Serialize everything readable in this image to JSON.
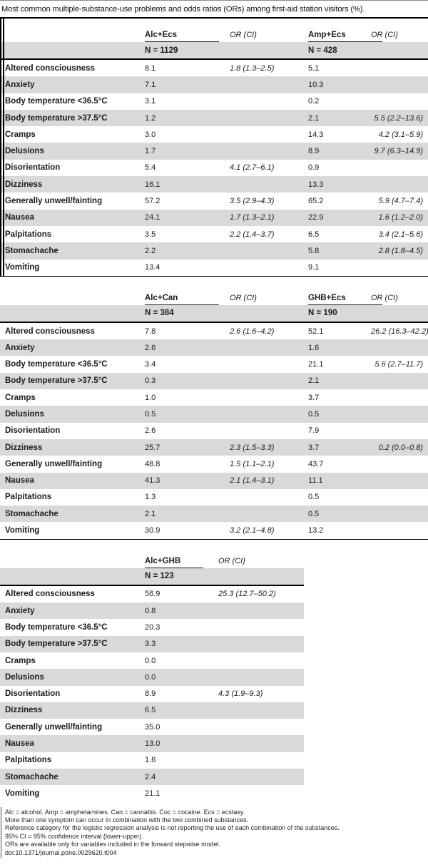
{
  "title": "Most common multiple-substance-use problems and odds ratios (ORs) among first-aid station visitors (%).",
  "or_header": "OR (CI)",
  "tables": [
    {
      "groups": [
        {
          "name": "Alc+Ecs",
          "n": "N = 1129"
        },
        {
          "name": "Amp+Ecs",
          "n": "N = 428"
        }
      ],
      "rows": [
        {
          "label": "Altered consciousness",
          "v1": "8.1",
          "or1": "1.8 (1.3–2.5)",
          "v2": "5.1",
          "or2": ""
        },
        {
          "label": "Anxiety",
          "v1": "7.1",
          "or1": "",
          "v2": "10.3",
          "or2": ""
        },
        {
          "label": "Body temperature <36.5°C",
          "v1": "3.1",
          "or1": "",
          "v2": "0.2",
          "or2": ""
        },
        {
          "label": "Body temperature >37.5°C",
          "v1": "1.2",
          "or1": "",
          "v2": "2.1",
          "or2": "5.5 (2.2–13.6)"
        },
        {
          "label": "Cramps",
          "v1": "3.0",
          "or1": "",
          "v2": "14.3",
          "or2": "4.2 (3.1–5.9)"
        },
        {
          "label": "Delusions",
          "v1": "1.7",
          "or1": "",
          "v2": "8.9",
          "or2": "9.7 (6.3–14.9)"
        },
        {
          "label": "Disorientation",
          "v1": "5.4",
          "or1": "4.1 (2.7–6.1)",
          "v2": "0.9",
          "or2": ""
        },
        {
          "label": "Dizziness",
          "v1": "16.1",
          "or1": "",
          "v2": "13.3",
          "or2": ""
        },
        {
          "label": "Generally unwell/fainting",
          "v1": "57.2",
          "or1": "3.5 (2.9–4.3)",
          "v2": "65.2",
          "or2": "5.9 (4.7–7.4)"
        },
        {
          "label": "Nausea",
          "v1": "24.1",
          "or1": "1.7 (1.3–2.1)",
          "v2": "22.9",
          "or2": "1.6 (1.2–2.0)"
        },
        {
          "label": "Palpitations",
          "v1": "3.5",
          "or1": "2.2 (1.4–3.7)",
          "v2": "6.5",
          "or2": "3.4 (2.1–5.6)"
        },
        {
          "label": "Stomachache",
          "v1": "2.2",
          "or1": "",
          "v2": "5.8",
          "or2": "2.8 (1.8–4.5)"
        },
        {
          "label": "Vomiting",
          "v1": "13.4",
          "or1": "",
          "v2": "9.1",
          "or2": ""
        }
      ]
    },
    {
      "groups": [
        {
          "name": "Alc+Can",
          "n": "N = 384"
        },
        {
          "name": "GHB+Ecs",
          "n": "N = 190"
        }
      ],
      "rows": [
        {
          "label": "Altered consciousness",
          "v1": "7.8",
          "or1": "2.6 (1.6–4.2)",
          "v2": "52.1",
          "or2": "26.2 (16.3–42.2)"
        },
        {
          "label": "Anxiety",
          "v1": "2.6",
          "or1": "",
          "v2": "1.6",
          "or2": ""
        },
        {
          "label": "Body temperature <36.5°C",
          "v1": "3.4",
          "or1": "",
          "v2": "21.1",
          "or2": "5.6 (2.7–11.7)"
        },
        {
          "label": "Body temperature >37.5°C",
          "v1": "0.3",
          "or1": "",
          "v2": "2.1",
          "or2": ""
        },
        {
          "label": "Cramps",
          "v1": "1.0",
          "or1": "",
          "v2": "3.7",
          "or2": ""
        },
        {
          "label": "Delusions",
          "v1": "0.5",
          "or1": "",
          "v2": "0.5",
          "or2": ""
        },
        {
          "label": "Disorientation",
          "v1": "2.6",
          "or1": "",
          "v2": "7.9",
          "or2": ""
        },
        {
          "label": "Dizziness",
          "v1": "25.7",
          "or1": "2.3 (1.5–3.3)",
          "v2": "3.7",
          "or2": "0.2 (0.0–0.8)"
        },
        {
          "label": "Generally unwell/fainting",
          "v1": "48.8",
          "or1": "1.5 (1.1–2.1)",
          "v2": "43.7",
          "or2": ""
        },
        {
          "label": "Nausea",
          "v1": "41.3",
          "or1": "2.1 (1.4–3.1)",
          "v2": "11.1",
          "or2": ""
        },
        {
          "label": "Palpitations",
          "v1": "1.3",
          "or1": "",
          "v2": "0.5",
          "or2": ""
        },
        {
          "label": "Stomachache",
          "v1": "2.1",
          "or1": "",
          "v2": "0.5",
          "or2": ""
        },
        {
          "label": "Vomiting",
          "v1": "30.9",
          "or1": "3.2 (2.1–4.8)",
          "v2": "13.2",
          "or2": ""
        }
      ]
    },
    {
      "groups": [
        {
          "name": "Alc+GHB",
          "n": "N = 123"
        }
      ],
      "rows": [
        {
          "label": "Altered consciousness",
          "v1": "56.9",
          "or1": "25.3 (12.7–50.2)"
        },
        {
          "label": "Anxiety",
          "v1": "0.8",
          "or1": ""
        },
        {
          "label": "Body temperature <36.5°C",
          "v1": "20.3",
          "or1": ""
        },
        {
          "label": "Body temperature >37.5°C",
          "v1": "3.3",
          "or1": ""
        },
        {
          "label": "Cramps",
          "v1": "0.0",
          "or1": ""
        },
        {
          "label": "Delusions",
          "v1": "0.0",
          "or1": ""
        },
        {
          "label": "Disorientation",
          "v1": "8.9",
          "or1": "4.3 (1.9–9.3)"
        },
        {
          "label": "Dizziness",
          "v1": "6.5",
          "or1": ""
        },
        {
          "label": "Generally unwell/fainting",
          "v1": "35.0",
          "or1": ""
        },
        {
          "label": "Nausea",
          "v1": "13.0",
          "or1": ""
        },
        {
          "label": "Palpitations",
          "v1": "1.6",
          "or1": ""
        },
        {
          "label": "Stomachache",
          "v1": "2.4",
          "or1": ""
        },
        {
          "label": "Vomiting",
          "v1": "21.1",
          "or1": ""
        }
      ]
    }
  ],
  "footnotes": [
    "Alc = alcohol. Amp = amphetamines. Can = cannabis. Coc = cocaine. Ecs = ecstasy.",
    "More than one symptom can occur in combination with the two combined substances.",
    "Reference category for the logistic regression analysis is not reporting the use of each combination of the substances.",
    "95% CI = 95% confidence interval (lower-upper).",
    "ORs are available only for variables included in the forward stepwise model.",
    "doi:10.1371/journal.pone.0029620.t004"
  ]
}
